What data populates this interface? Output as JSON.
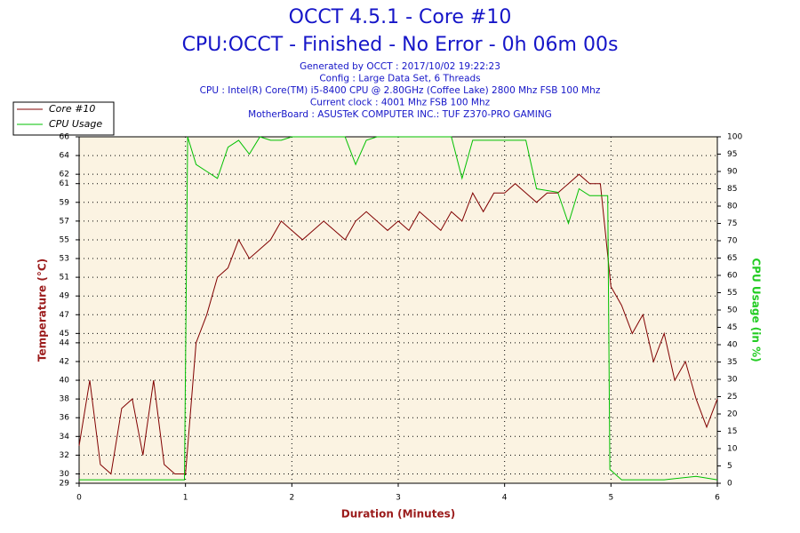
{
  "chart_data": {
    "type": "line",
    "title": "OCCT 4.5.1 - Core #10",
    "subtitle": "CPU:OCCT - Finished - No Error - 0h 06m 00s",
    "info": [
      "Generated by OCCT : 2017/10/02 19:22:23",
      "Config : Large Data Set, 6 Threads",
      "CPU : Intel(R) Core(TM) i5-8400 CPU @ 2.80GHz (Coffee Lake) 2800 Mhz FSB 100 Mhz",
      "Current clock : 4001 Mhz FSB 100 Mhz",
      "MotherBoard : ASUSTeK COMPUTER INC.: TUF Z370-PRO GAMING"
    ],
    "x_label": "Duration (Minutes)",
    "y_label": "Temperature (°C)",
    "y2_label": "CPU Usage (in %)",
    "xlim": [
      0,
      6
    ],
    "xticks": [
      0,
      1,
      2,
      3,
      4,
      5,
      6
    ],
    "ylim": [
      29,
      66
    ],
    "yticks": [
      29,
      30,
      32,
      34,
      36,
      38,
      40,
      42,
      44,
      45,
      47,
      49,
      51,
      53,
      55,
      57,
      59,
      61,
      62,
      64,
      66
    ],
    "y2lim": [
      0,
      100
    ],
    "y2ticks": [
      0,
      5,
      10,
      15,
      20,
      25,
      30,
      35,
      40,
      45,
      50,
      55,
      60,
      65,
      70,
      75,
      80,
      85,
      90,
      95,
      100
    ],
    "grid": true,
    "series": [
      {
        "name": "Core #10",
        "color": "#800000",
        "x": [
          0,
          0.1,
          0.2,
          0.3,
          0.4,
          0.5,
          0.6,
          0.7,
          0.8,
          0.9,
          1.0,
          1.1,
          1.2,
          1.3,
          1.4,
          1.5,
          1.6,
          1.7,
          1.8,
          1.9,
          2.0,
          2.1,
          2.2,
          2.3,
          2.4,
          2.5,
          2.6,
          2.7,
          2.8,
          2.9,
          3.0,
          3.1,
          3.2,
          3.3,
          3.4,
          3.5,
          3.6,
          3.7,
          3.8,
          3.9,
          4.0,
          4.1,
          4.2,
          4.3,
          4.4,
          4.5,
          4.6,
          4.7,
          4.8,
          4.9,
          5.0,
          5.1,
          5.2,
          5.3,
          5.4,
          5.5,
          5.6,
          5.7,
          5.8,
          5.9,
          6.0
        ],
        "values": [
          33,
          40,
          31,
          30,
          37,
          38,
          32,
          40,
          31,
          30,
          30,
          44,
          47,
          51,
          52,
          55,
          53,
          54,
          55,
          57,
          56,
          55,
          56,
          57,
          56,
          55,
          57,
          58,
          57,
          56,
          57,
          56,
          58,
          57,
          56,
          58,
          57,
          60,
          58,
          60,
          60,
          61,
          60,
          59,
          60,
          60,
          61,
          62,
          61,
          61,
          50,
          48,
          45,
          47,
          42,
          45,
          40,
          42,
          38,
          35,
          38
        ]
      },
      {
        "name": "CPU Usage",
        "color": "#00c000",
        "axis": "y2",
        "x": [
          0,
          0.5,
          0.99,
          1.02,
          1.1,
          1.2,
          1.3,
          1.4,
          1.5,
          1.6,
          1.7,
          1.8,
          1.9,
          2.0,
          2.5,
          2.6,
          2.7,
          2.8,
          3.0,
          3.5,
          3.6,
          3.7,
          4.0,
          4.2,
          4.3,
          4.5,
          4.6,
          4.7,
          4.8,
          4.97,
          4.99,
          5.1,
          5.5,
          5.8,
          6.0
        ],
        "values": [
          1,
          1,
          1,
          100,
          92,
          90,
          88,
          97,
          99,
          95,
          100,
          99,
          99,
          100,
          100,
          92,
          99,
          100,
          100,
          100,
          88,
          99,
          99,
          99,
          85,
          84,
          75,
          85,
          83,
          83,
          4,
          1,
          1,
          2,
          1
        ]
      }
    ]
  }
}
